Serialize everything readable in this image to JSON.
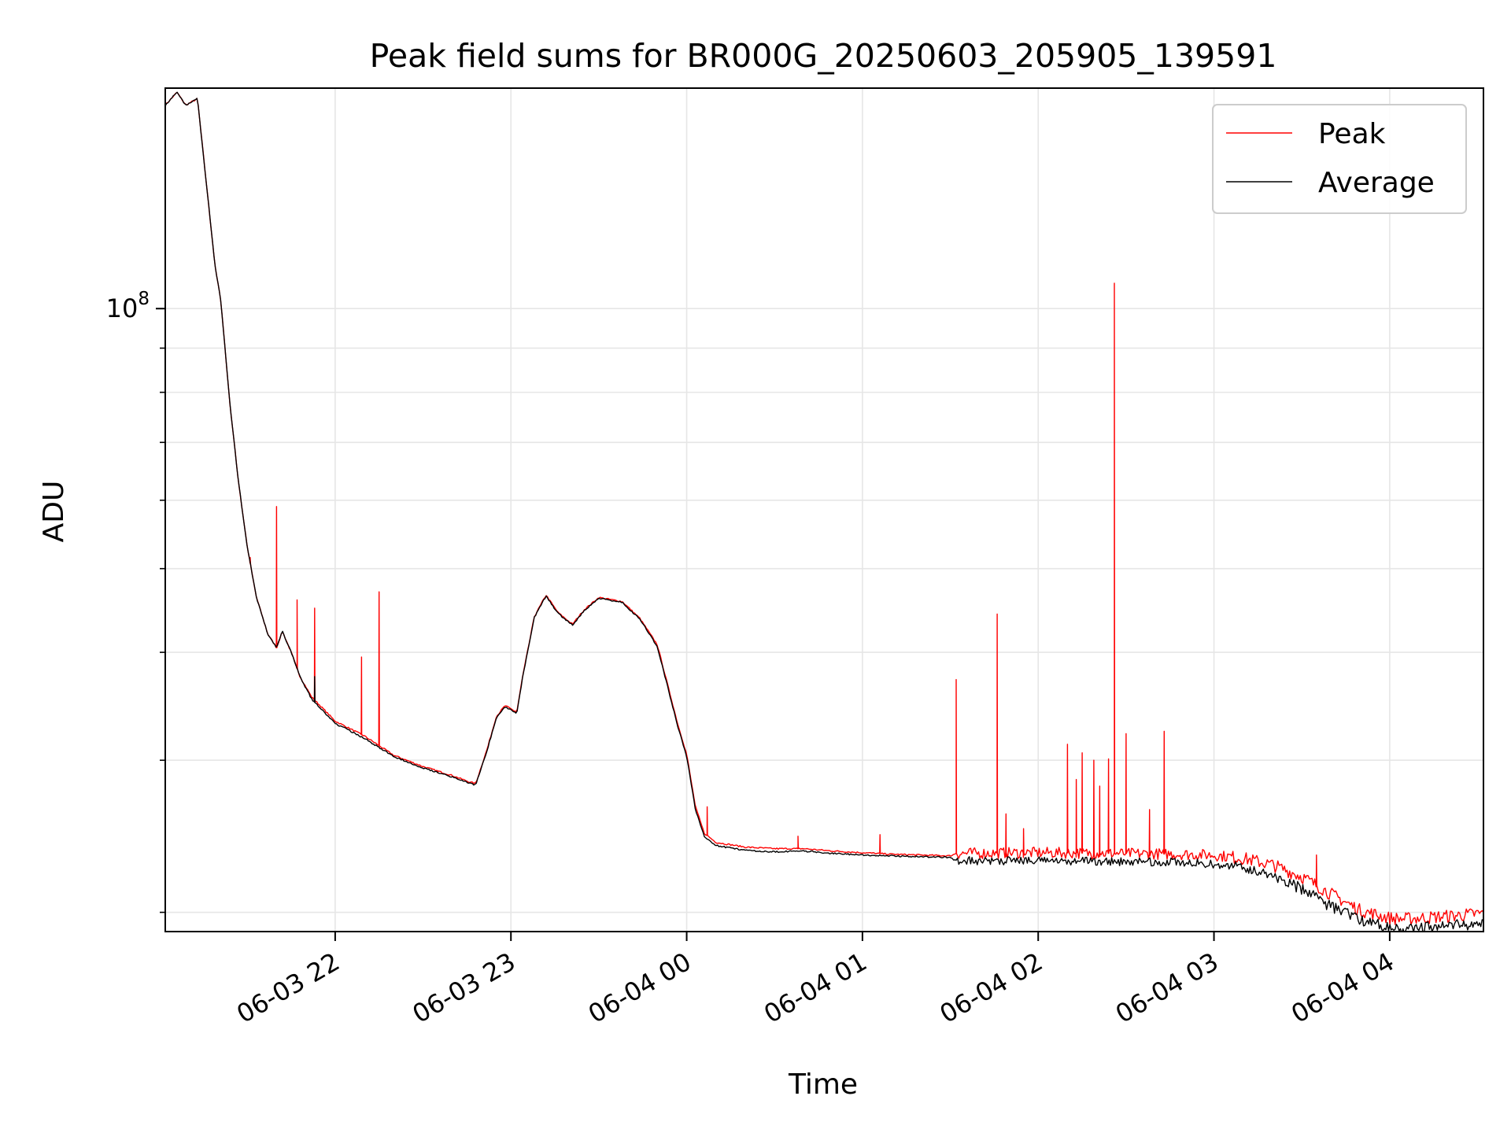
{
  "chart_data": {
    "type": "line",
    "title": "Peak field sums for BR000G_20250603_205905_139591",
    "xlabel": "Time",
    "ylabel": "ADU",
    "y_scale": "log",
    "ylim": [
      19000000,
      180000000
    ],
    "xlim": [
      "2025-06-03 21:02",
      "2025-06-04 04:32"
    ],
    "grid": true,
    "legend_position": "top-right",
    "x_ticks": [
      {
        "t": "2025-06-03 22:00",
        "label": "06-03 22"
      },
      {
        "t": "2025-06-03 23:00",
        "label": "06-03 23"
      },
      {
        "t": "2025-06-04 00:00",
        "label": "06-04 00"
      },
      {
        "t": "2025-06-04 01:00",
        "label": "06-04 01"
      },
      {
        "t": "2025-06-04 02:00",
        "label": "06-04 02"
      },
      {
        "t": "2025-06-04 03:00",
        "label": "06-04 03"
      },
      {
        "t": "2025-06-04 04:00",
        "label": "06-04 04"
      }
    ],
    "y_major_ticks": [
      {
        "value": 100000000,
        "label": "10",
        "exp": "8"
      }
    ],
    "y_minor_ticks": [
      20000000,
      30000000,
      40000000,
      50000000,
      60000000,
      70000000,
      80000000,
      90000000,
      200000000
    ],
    "series": [
      {
        "name": "Peak",
        "color": "#ff0000",
        "baseline": [
          [
            "2025-06-03 21:02",
            172000000
          ],
          [
            "2025-06-03 21:06",
            178000000
          ],
          [
            "2025-06-03 21:09",
            172000000
          ],
          [
            "2025-06-03 21:13",
            175000000
          ],
          [
            "2025-06-03 21:16",
            140000000
          ],
          [
            "2025-06-03 21:19",
            112000000
          ],
          [
            "2025-06-03 21:21",
            102000000
          ],
          [
            "2025-06-03 21:24",
            78000000
          ],
          [
            "2025-06-03 21:27",
            63000000
          ],
          [
            "2025-06-03 21:30",
            53000000
          ],
          [
            "2025-06-03 21:33",
            46500000
          ],
          [
            "2025-06-03 21:37",
            42000000
          ],
          [
            "2025-06-03 21:40",
            40500000
          ],
          [
            "2025-06-03 21:42",
            42300000
          ],
          [
            "2025-06-03 21:45",
            40000000
          ],
          [
            "2025-06-03 21:48",
            37500000
          ],
          [
            "2025-06-03 21:52",
            35500000
          ],
          [
            "2025-06-03 22:00",
            33300000
          ],
          [
            "2025-06-03 22:10",
            32000000
          ],
          [
            "2025-06-03 22:20",
            30400000
          ],
          [
            "2025-06-03 22:30",
            29500000
          ],
          [
            "2025-06-03 22:40",
            28800000
          ],
          [
            "2025-06-03 22:46",
            28300000
          ],
          [
            "2025-06-03 22:48",
            28200000
          ],
          [
            "2025-06-03 22:52",
            31000000
          ],
          [
            "2025-06-03 22:55",
            33700000
          ],
          [
            "2025-06-03 22:58",
            34700000
          ],
          [
            "2025-06-03 23:02",
            34100000
          ],
          [
            "2025-06-03 23:04",
            37500000
          ],
          [
            "2025-06-03 23:08",
            44000000
          ],
          [
            "2025-06-03 23:12",
            46600000
          ],
          [
            "2025-06-03 23:16",
            44500000
          ],
          [
            "2025-06-03 23:21",
            43100000
          ],
          [
            "2025-06-03 23:25",
            44800000
          ],
          [
            "2025-06-03 23:30",
            46300000
          ],
          [
            "2025-06-03 23:38",
            45800000
          ],
          [
            "2025-06-03 23:44",
            43800000
          ],
          [
            "2025-06-03 23:50",
            40800000
          ],
          [
            "2025-06-03 23:57",
            33000000
          ],
          [
            "2025-06-04 00:00",
            30500000
          ],
          [
            "2025-06-04 00:03",
            26500000
          ],
          [
            "2025-06-04 00:06",
            24700000
          ],
          [
            "2025-06-04 00:10",
            24100000
          ],
          [
            "2025-06-04 00:20",
            23800000
          ],
          [
            "2025-06-04 00:30",
            23700000
          ],
          [
            "2025-06-04 00:40",
            23700000
          ],
          [
            "2025-06-04 00:50",
            23550000
          ],
          [
            "2025-06-04 01:00",
            23450000
          ],
          [
            "2025-06-04 01:10",
            23350000
          ],
          [
            "2025-06-04 01:20",
            23300000
          ],
          [
            "2025-06-04 01:30",
            23250000
          ],
          [
            "2025-06-04 01:32",
            23400000
          ],
          [
            "2025-06-04 02:00",
            23450000
          ],
          [
            "2025-06-04 02:30",
            23400000
          ],
          [
            "2025-06-04 02:50",
            23350000
          ],
          [
            "2025-06-04 03:00",
            23300000
          ],
          [
            "2025-06-04 03:10",
            23100000
          ],
          [
            "2025-06-04 03:20",
            22700000
          ],
          [
            "2025-06-04 03:30",
            22000000
          ],
          [
            "2025-06-04 03:40",
            21000000
          ],
          [
            "2025-06-04 03:50",
            20100000
          ],
          [
            "2025-06-04 04:00",
            19700000
          ],
          [
            "2025-06-04 04:05",
            19650000
          ],
          [
            "2025-06-04 04:10",
            19700000
          ],
          [
            "2025-06-04 04:20",
            19800000
          ],
          [
            "2025-06-04 04:32",
            19950000
          ]
        ],
        "spikes": [
          [
            "2025-06-03 21:31",
            51500000
          ],
          [
            "2025-06-03 21:40",
            59000000
          ],
          [
            "2025-06-03 21:47",
            46000000
          ],
          [
            "2025-06-03 21:53",
            45000000
          ],
          [
            "2025-06-03 22:09",
            39500000
          ],
          [
            "2025-06-03 22:15",
            47000000
          ],
          [
            "2025-06-03 22:35",
            29000000
          ],
          [
            "2025-06-04 00:07",
            26500000
          ],
          [
            "2025-06-04 00:38",
            24500000
          ],
          [
            "2025-06-04 01:06",
            24600000
          ],
          [
            "2025-06-04 01:32",
            37200000
          ],
          [
            "2025-06-04 01:46",
            44300000
          ],
          [
            "2025-06-04 01:49",
            26000000
          ],
          [
            "2025-06-04 01:55",
            25000000
          ],
          [
            "2025-06-04 02:10",
            31300000
          ],
          [
            "2025-06-04 02:13",
            28500000
          ],
          [
            "2025-06-04 02:15",
            30600000
          ],
          [
            "2025-06-04 02:19",
            30000000
          ],
          [
            "2025-06-04 02:21",
            28000000
          ],
          [
            "2025-06-04 02:24",
            30100000
          ],
          [
            "2025-06-04 02:26",
            107000000
          ],
          [
            "2025-06-04 02:30",
            32200000
          ],
          [
            "2025-06-04 02:38",
            26300000
          ],
          [
            "2025-06-04 02:43",
            32400000
          ],
          [
            "2025-06-04 03:35",
            23300000
          ]
        ]
      },
      {
        "name": "Average",
        "color": "#000000",
        "baseline": [
          [
            "2025-06-03 21:02",
            172000000
          ],
          [
            "2025-06-03 21:06",
            178000000
          ],
          [
            "2025-06-03 21:09",
            172000000
          ],
          [
            "2025-06-03 21:13",
            175000000
          ],
          [
            "2025-06-03 21:16",
            140000000
          ],
          [
            "2025-06-03 21:19",
            112000000
          ],
          [
            "2025-06-03 21:21",
            102000000
          ],
          [
            "2025-06-03 21:24",
            78000000
          ],
          [
            "2025-06-03 21:27",
            63000000
          ],
          [
            "2025-06-03 21:30",
            53000000
          ],
          [
            "2025-06-03 21:33",
            46500000
          ],
          [
            "2025-06-03 21:37",
            42000000
          ],
          [
            "2025-06-03 21:40",
            40500000
          ],
          [
            "2025-06-03 21:42",
            42300000
          ],
          [
            "2025-06-03 21:45",
            40000000
          ],
          [
            "2025-06-03 21:48",
            37500000
          ],
          [
            "2025-06-03 21:52",
            35300000
          ],
          [
            "2025-06-03 22:00",
            33100000
          ],
          [
            "2025-06-03 22:10",
            31800000
          ],
          [
            "2025-06-03 22:20",
            30300000
          ],
          [
            "2025-06-03 22:30",
            29400000
          ],
          [
            "2025-06-03 22:40",
            28700000
          ],
          [
            "2025-06-03 22:46",
            28200000
          ],
          [
            "2025-06-03 22:48",
            28100000
          ],
          [
            "2025-06-03 22:52",
            30900000
          ],
          [
            "2025-06-03 22:55",
            33600000
          ],
          [
            "2025-06-03 22:58",
            34600000
          ],
          [
            "2025-06-03 23:02",
            34000000
          ],
          [
            "2025-06-03 23:04",
            37400000
          ],
          [
            "2025-06-03 23:08",
            43900000
          ],
          [
            "2025-06-03 23:12",
            46500000
          ],
          [
            "2025-06-03 23:16",
            44400000
          ],
          [
            "2025-06-03 23:21",
            43000000
          ],
          [
            "2025-06-03 23:25",
            44700000
          ],
          [
            "2025-06-03 23:30",
            46200000
          ],
          [
            "2025-06-03 23:38",
            45700000
          ],
          [
            "2025-06-03 23:44",
            43700000
          ],
          [
            "2025-06-03 23:50",
            40600000
          ],
          [
            "2025-06-03 23:57",
            32800000
          ],
          [
            "2025-06-04 00:00",
            30300000
          ],
          [
            "2025-06-04 00:03",
            26300000
          ],
          [
            "2025-06-04 00:06",
            24500000
          ],
          [
            "2025-06-04 00:10",
            23900000
          ],
          [
            "2025-06-04 00:20",
            23600000
          ],
          [
            "2025-06-04 00:30",
            23500000
          ],
          [
            "2025-06-04 00:40",
            23550000
          ],
          [
            "2025-06-04 00:50",
            23400000
          ],
          [
            "2025-06-04 01:00",
            23300000
          ],
          [
            "2025-06-04 01:10",
            23250000
          ],
          [
            "2025-06-04 01:20",
            23200000
          ],
          [
            "2025-06-04 01:30",
            23150000
          ],
          [
            "2025-06-04 01:32",
            22950000
          ],
          [
            "2025-06-04 02:00",
            22950000
          ],
          [
            "2025-06-04 02:30",
            22900000
          ],
          [
            "2025-06-04 02:50",
            22850000
          ],
          [
            "2025-06-04 03:00",
            22750000
          ],
          [
            "2025-06-04 03:10",
            22500000
          ],
          [
            "2025-06-04 03:20",
            22000000
          ],
          [
            "2025-06-04 03:30",
            21300000
          ],
          [
            "2025-06-04 03:40",
            20300000
          ],
          [
            "2025-06-04 03:50",
            19600000
          ],
          [
            "2025-06-04 04:00",
            19200000
          ],
          [
            "2025-06-04 04:05",
            19150000
          ],
          [
            "2025-06-04 04:10",
            19200000
          ],
          [
            "2025-06-04 04:20",
            19300000
          ],
          [
            "2025-06-04 04:32",
            19400000
          ]
        ],
        "spikes": [
          [
            "2025-06-03 21:53",
            37500000
          ]
        ]
      }
    ]
  }
}
